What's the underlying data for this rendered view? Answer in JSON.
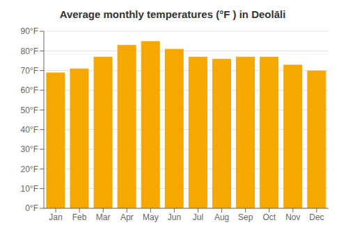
{
  "chart_data": {
    "type": "bar",
    "title": "Average monthly temperatures (°F ) in Deolāli",
    "categories": [
      "Jan",
      "Feb",
      "Mar",
      "Apr",
      "May",
      "Jun",
      "Jul",
      "Aug",
      "Sep",
      "Oct",
      "Nov",
      "Dec"
    ],
    "values": [
      69,
      71,
      77,
      83,
      85,
      81,
      77,
      76,
      77,
      77,
      73,
      70
    ],
    "color": "#F5A800",
    "ylim": [
      0,
      90
    ],
    "yticks": [
      {
        "value": 0,
        "label": "0°F"
      },
      {
        "value": 10,
        "label": "10°F"
      },
      {
        "value": 20,
        "label": "20°F"
      },
      {
        "value": 30,
        "label": "30°F"
      },
      {
        "value": 40,
        "label": "40°F"
      },
      {
        "value": 50,
        "label": "50°F"
      },
      {
        "value": 60,
        "label": "60°F"
      },
      {
        "value": 70,
        "label": "70°F"
      },
      {
        "value": 80,
        "label": "80°F"
      },
      {
        "value": 90,
        "label": "90°F"
      }
    ],
    "grid": true
  }
}
